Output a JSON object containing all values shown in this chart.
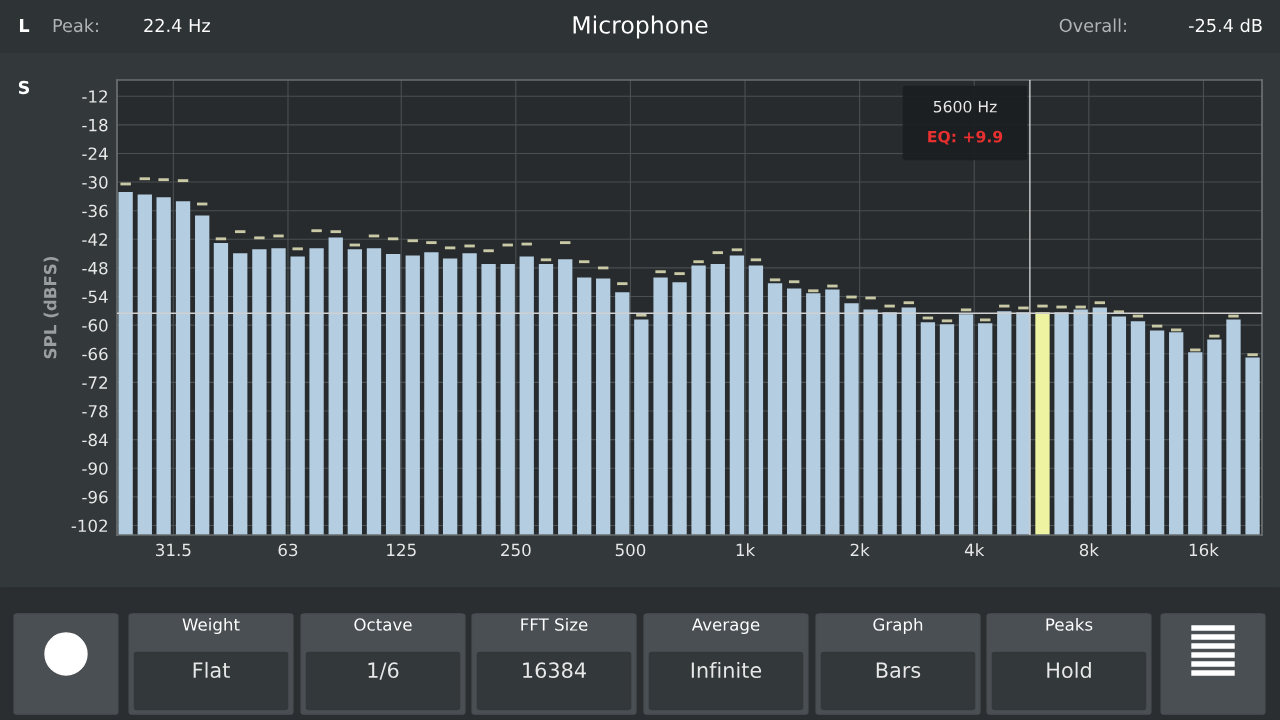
{
  "chart_data": {
    "type": "bar",
    "title": "Microphone",
    "ylabel": "SPL (dBFS)",
    "x": [
      23.6,
      26.5,
      29.7,
      33.4,
      37.5,
      42.0,
      47.2,
      53.0,
      59.5,
      66.8,
      74.9,
      84.1,
      94.4,
      106,
      119,
      134,
      150,
      168,
      189,
      212,
      238,
      267,
      300,
      337,
      378,
      424,
      476,
      534,
      600,
      673,
      755,
      848,
      952,
      1068,
      1199,
      1346,
      1511,
      1696,
      1904,
      2137,
      2398,
      2692,
      3022,
      3392,
      3807,
      4274,
      4797,
      5385,
      6044,
      6784,
      7615,
      8548,
      9594,
      10769,
      12088,
      13568,
      15230,
      17095,
      19188,
      21538
    ],
    "series": [
      {
        "colors": [
          "#b4cde0",
          "#b4cde0",
          "#b4cde0",
          "#b4cde0",
          "#b4cde0",
          "#b4cde0",
          "#b4cde0",
          "#b4cde0",
          "#b4cde0",
          "#b4cde0",
          "#b4cde0",
          "#b4cde0",
          "#b4cde0",
          "#b4cde0",
          "#b4cde0",
          "#b4cde0",
          "#b4cde0",
          "#b4cde0",
          "#b4cde0",
          "#b4cde0",
          "#b4cde0",
          "#b4cde0",
          "#b4cde0",
          "#b4cde0",
          "#b4cde0",
          "#b4cde0",
          "#b4cde0",
          "#b4cde0",
          "#b4cde0",
          "#b4cde0",
          "#b4cde0",
          "#b4cde0",
          "#b4cde0",
          "#b4cde0",
          "#b4cde0",
          "#b4cde0",
          "#b4cde0",
          "#b4cde0",
          "#b4cde0",
          "#b4cde0",
          "#b4cde0",
          "#b4cde0",
          "#b4cde0",
          "#b4cde0",
          "#b4cde0",
          "#b4cde0",
          "#b4cde0",
          "#b4cde0",
          "#eef3a2",
          "#b4cde0",
          "#b4cde0",
          "#b4cde0",
          "#b4cde0",
          "#b4cde0",
          "#b4cde0",
          "#b4cde0",
          "#b4cde0",
          "#b4cde0",
          "#b4cde0",
          "#b4cde0"
        ],
        "base": [
          -104,
          -104,
          -104,
          -104,
          -104,
          -104,
          -104,
          -104,
          -104,
          -104,
          -104,
          -104,
          -104,
          -104,
          -104,
          -104,
          -104,
          -104,
          -104,
          -104,
          -104,
          -104,
          -104,
          -104,
          -104,
          -104,
          -104,
          -104,
          -104,
          -104,
          -104,
          -104,
          -104,
          -104,
          -104,
          -104,
          -104,
          -104,
          -104,
          -104,
          -104,
          -104,
          -104,
          -104,
          -104,
          -104,
          -104,
          -104,
          -104,
          -104,
          -104,
          -104,
          -104,
          -104,
          -104,
          -104,
          -104,
          -104,
          -104,
          -104
        ],
        "values": [
          71.9,
          71.4,
          70.8,
          70.0,
          67.0,
          61.2,
          59.1,
          59.9,
          60.1,
          58.4,
          60.1,
          62.4,
          59.9,
          60.1,
          58.9,
          58.6,
          59.3,
          58.0,
          59.1,
          56.8,
          56.8,
          58.4,
          56.8,
          57.8,
          54.0,
          53.8,
          50.9,
          45.2,
          54.0,
          53.0,
          56.5,
          56.8,
          58.6,
          56.5,
          52.8,
          51.7,
          50.7,
          51.5,
          48.6,
          47.3,
          46.7,
          47.7,
          44.6,
          44.2,
          46.3,
          44.4,
          46.9,
          46.7,
          46.7,
          46.7,
          47.3,
          47.7,
          45.8,
          44.8,
          42.9,
          42.5,
          38.3,
          41.0,
          45.2,
          37.2
        ]
      },
      {
        "color": "#c9c9a6",
        "base": [
          -30.7,
          -29.6,
          -29.8,
          -30.0,
          -34.9,
          -42.2,
          -40.7,
          -42.0,
          -41.6,
          -44.3,
          -40.5,
          -40.7,
          -43.5,
          -41.6,
          -42.2,
          -42.6,
          -43.0,
          -44.1,
          -43.7,
          -44.7,
          -43.5,
          -43.3,
          -46.6,
          -43.0,
          -47.0,
          -48.3,
          -51.6,
          -58.2,
          -49.1,
          -49.5,
          -47.0,
          -45.1,
          -44.5,
          -46.6,
          -50.8,
          -51.2,
          -53.1,
          -52.1,
          -54.4,
          -54.6,
          -56.3,
          -55.6,
          -58.8,
          -59.4,
          -57.1,
          -59.2,
          -56.3,
          -56.7,
          -56.3,
          -56.5,
          -56.5,
          -55.6,
          -57.5,
          -58.4,
          -60.5,
          -61.3,
          -65.5,
          -62.6,
          -58.4,
          -66.5
        ],
        "values": [
          0.6,
          0.6,
          0.6,
          0.6,
          0.6,
          0.6,
          0.6,
          0.6,
          0.6,
          0.6,
          0.6,
          0.6,
          0.6,
          0.6,
          0.6,
          0.6,
          0.6,
          0.6,
          0.6,
          0.6,
          0.6,
          0.6,
          0.6,
          0.6,
          0.6,
          0.6,
          0.6,
          0.6,
          0.6,
          0.6,
          0.6,
          0.6,
          0.6,
          0.6,
          0.6,
          0.6,
          0.6,
          0.6,
          0.6,
          0.6,
          0.6,
          0.6,
          0.6,
          0.6,
          0.6,
          0.6,
          0.6,
          0.6,
          0.6,
          0.6,
          0.6,
          0.6,
          0.6,
          0.6,
          0.6,
          0.6,
          0.6,
          0.6,
          0.6,
          0.6
        ]
      }
    ],
    "log": "x",
    "xlim": [
      22.4,
      22800
    ],
    "xticks": [
      31.5,
      63,
      125,
      250,
      500,
      {
        "value": 1000,
        "label": "1k"
      },
      {
        "value": 2000,
        "label": "2k"
      },
      {
        "value": 4000,
        "label": "4k"
      },
      {
        "value": 8000,
        "label": "8k"
      },
      {
        "value": 16000,
        "label": "16k"
      }
    ],
    "ylim": [
      -104,
      -8.6
    ],
    "yticks": [
      -12,
      -18,
      -24,
      -30,
      -36,
      -42,
      -48,
      -54,
      -60,
      -66,
      -72,
      -78,
      -84,
      -90,
      -96,
      -102
    ],
    "grid": true,
    "ref_lines": [
      {
        "axis": "x",
        "value": 5600,
        "color": "#d0d0d0"
      },
      {
        "axis": "y",
        "value": -57.5,
        "color": "#d0d0d0"
      }
    ],
    "annotations": [
      "L",
      "S",
      "Peak:",
      "22.4 Hz",
      "Overall:",
      "-25.4 dB",
      "5600 Hz",
      "EQ: +9.9",
      "Weight",
      "Flat",
      "Octave",
      "1/6",
      "FFT Size",
      "16384",
      "Average",
      "Infinite",
      "Graph",
      "Bars",
      "Peaks",
      "Hold"
    ]
  }
}
